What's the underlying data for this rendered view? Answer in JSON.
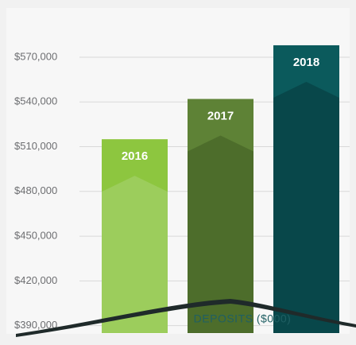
{
  "chart_data": {
    "type": "bar",
    "title": "DEPOSITS ($000)",
    "categories": [
      "2016",
      "2017",
      "2018"
    ],
    "values": [
      515000,
      542000,
      578000
    ],
    "colors": [
      "#8dc63f",
      "#5e8236",
      "#0b5a5c"
    ],
    "ylim": [
      385000,
      580000
    ],
    "yticks": [
      {
        "value": 390000,
        "label": "$390,000"
      },
      {
        "value": 420000,
        "label": "$420,000"
      },
      {
        "value": 450000,
        "label": "$450,000"
      },
      {
        "value": 480000,
        "label": "$480,000"
      },
      {
        "value": 510000,
        "label": "$510,000"
      },
      {
        "value": 540000,
        "label": "$540,000"
      },
      {
        "value": 570000,
        "label": "$570,000"
      }
    ],
    "grid": true
  }
}
